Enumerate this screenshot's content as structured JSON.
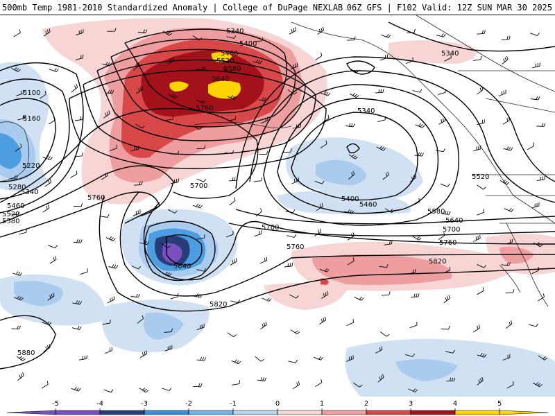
{
  "header": {
    "title": "500mb Temp 1981-2010 Standardized Anomaly | College of DuPage NEXLAB",
    "run_info": "06Z GFS | F102 Valid: 12Z SUN MAR 30 2025"
  },
  "legend": {
    "ticks": [
      "-5",
      "-4",
      "-3",
      "-2",
      "-1",
      "0",
      "1",
      "2",
      "3",
      "4",
      "5"
    ],
    "colors": [
      "#7b4fbf",
      "#263d7a",
      "#3a8fd6",
      "#74b3e6",
      "#b7d4ee",
      "#ffffff",
      "#f7d5d5",
      "#ee9e9e",
      "#d94848",
      "#a3111b",
      "#ffd400"
    ]
  },
  "colors": {
    "strong_positive": "#a3111b",
    "positive": "#d94848",
    "weak_positive": "#ee9e9e",
    "faint_positive": "#f7d5d5",
    "faint_negative": "#cfe1f3",
    "weak_negative": "#a8cbee",
    "negative": "#4d9ee0",
    "strong_negative": "#263d7a",
    "extreme_negative": "#7b4fbf",
    "extreme_positive": "#ffd400"
  },
  "contour_labels": [
    {
      "id": "c5340-a",
      "text": "5340"
    },
    {
      "id": "c5400-a",
      "text": "5400"
    },
    {
      "id": "c5460-a",
      "text": "5460"
    },
    {
      "id": "c5520-a",
      "text": "5520"
    },
    {
      "id": "c5580-a",
      "text": "5580"
    },
    {
      "id": "c5640-a",
      "text": "5640"
    },
    {
      "id": "c5760-a",
      "text": "5760"
    },
    {
      "id": "c5100",
      "text": "5100"
    },
    {
      "id": "c5160",
      "text": "5160"
    },
    {
      "id": "c5220",
      "text": "5220"
    },
    {
      "id": "c5280",
      "text": "5280"
    },
    {
      "id": "c5340-b",
      "text": "5340"
    },
    {
      "id": "c5460-b",
      "text": "5460"
    },
    {
      "id": "c5520-b",
      "text": "5520"
    },
    {
      "id": "c5580-b",
      "text": "5580"
    },
    {
      "id": "c5760-b",
      "text": "5760"
    },
    {
      "id": "c5700-a",
      "text": "5700"
    },
    {
      "id": "c5700-b",
      "text": "5700"
    },
    {
      "id": "c5760-c",
      "text": "5760"
    },
    {
      "id": "c5640-b",
      "text": "5640"
    },
    {
      "id": "c5820-a",
      "text": "5820"
    },
    {
      "id": "c5880",
      "text": "5880"
    },
    {
      "id": "c5340-c",
      "text": "5340"
    },
    {
      "id": "c5340-d",
      "text": "5340"
    },
    {
      "id": "c5400-b",
      "text": "5400"
    },
    {
      "id": "c5460-c",
      "text": "5460"
    },
    {
      "id": "c5520-c",
      "text": "5520"
    },
    {
      "id": "c5580-c",
      "text": "5580"
    },
    {
      "id": "c5640-c",
      "text": "5640"
    },
    {
      "id": "c5700-c",
      "text": "5700"
    },
    {
      "id": "c5760-d",
      "text": "5760"
    },
    {
      "id": "c5820-b",
      "text": "5820"
    }
  ]
}
